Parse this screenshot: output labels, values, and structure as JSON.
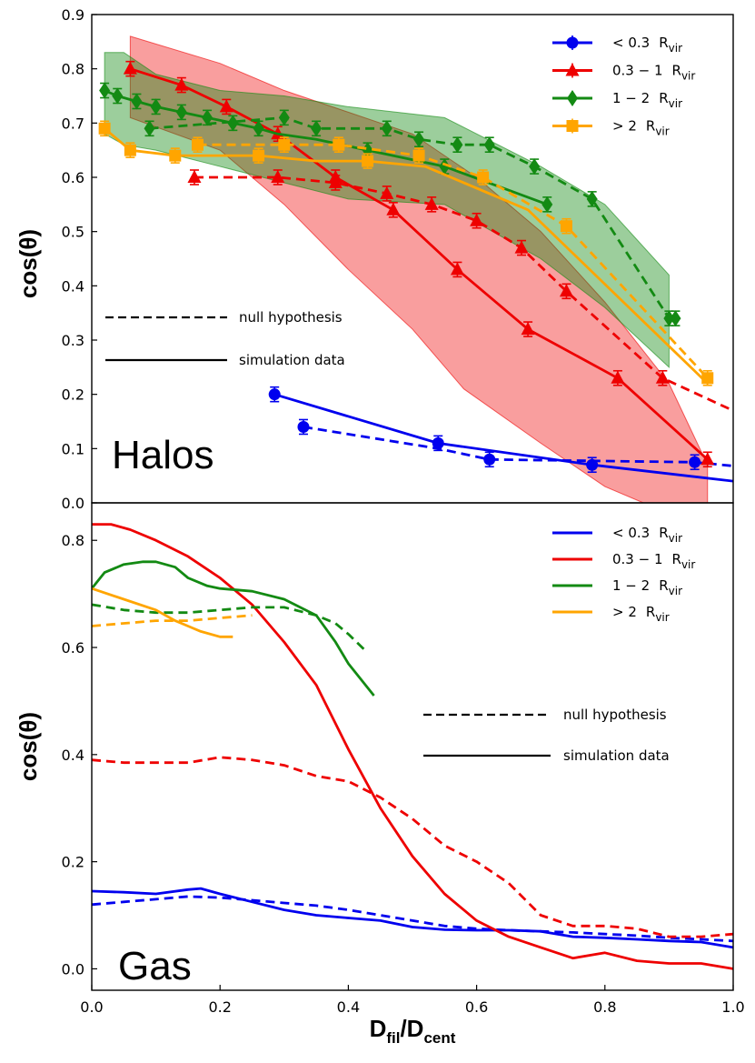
{
  "figure": {
    "xlabel_main": "D",
    "xlabel_sub1": "fil",
    "xlabel_mid": "/D",
    "xlabel_sub2": "cent"
  },
  "chart_data": [
    {
      "type": "line",
      "panel_label": "Halos",
      "ylabel": "cos(θ)",
      "xlim": [
        0.0,
        1.0
      ],
      "ylim": [
        0.0,
        0.9
      ],
      "yticks": [
        "0.0",
        "0.1",
        "0.2",
        "0.3",
        "0.4",
        "0.5",
        "0.6",
        "0.7",
        "0.8",
        "0.9"
      ],
      "linestyle_key": {
        "dashed": "null hypothesis",
        "solid": "simulation data"
      },
      "legend_position": "top-right",
      "series": [
        {
          "name": "< 0.3",
          "unit": "R",
          "unit_sub": "vir",
          "color": "#0000ee",
          "marker": "circle",
          "style": "solid",
          "x": [
            0.285,
            0.54,
            0.78,
            1.0
          ],
          "y": [
            0.2,
            0.11,
            0.07,
            0.04
          ],
          "markers": [
            0,
            1,
            2
          ]
        },
        {
          "name": "< 0.3",
          "color": "#0000ee",
          "marker": "circle",
          "style": "dashed",
          "x": [
            0.33,
            0.54,
            0.62,
            0.94,
            1.0
          ],
          "y": [
            0.14,
            0.1,
            0.08,
            0.075,
            0.068
          ],
          "markers": [
            0,
            2,
            3
          ]
        },
        {
          "name": "0.3 − 1",
          "unit": "R",
          "unit_sub": "vir",
          "color": "#ee0000",
          "marker": "triangle",
          "style": "solid",
          "x": [
            0.06,
            0.14,
            0.21,
            0.29,
            0.38,
            0.47,
            0.57,
            0.68,
            0.82,
            0.96
          ],
          "y": [
            0.8,
            0.77,
            0.73,
            0.68,
            0.6,
            0.54,
            0.43,
            0.32,
            0.23,
            0.08
          ],
          "markers": [
            0,
            1,
            2,
            3,
            4,
            5,
            6,
            7,
            8,
            9
          ]
        },
        {
          "name": "0.3 − 1",
          "color": "#ee0000",
          "marker": "triangle",
          "style": "dashed",
          "x": [
            0.16,
            0.29,
            0.38,
            0.46,
            0.53,
            0.6,
            0.67,
            0.74,
            0.89,
            1.0
          ],
          "y": [
            0.6,
            0.6,
            0.59,
            0.57,
            0.55,
            0.52,
            0.47,
            0.39,
            0.23,
            0.17
          ],
          "markers": [
            0,
            1,
            2,
            3,
            4,
            5,
            6,
            7,
            8
          ]
        },
        {
          "name": "1 − 2",
          "unit": "R",
          "unit_sub": "vir",
          "color": "#138a13",
          "marker": "diamond",
          "style": "solid",
          "x": [
            0.02,
            0.04,
            0.07,
            0.1,
            0.14,
            0.18,
            0.22,
            0.26,
            0.29,
            0.35,
            0.43,
            0.55,
            0.71
          ],
          "y": [
            0.76,
            0.75,
            0.74,
            0.73,
            0.72,
            0.71,
            0.7,
            0.69,
            0.68,
            0.67,
            0.65,
            0.62,
            0.55
          ],
          "markers": [
            0,
            1,
            2,
            3,
            4,
            5,
            6,
            7,
            10,
            11,
            12
          ]
        },
        {
          "name": "1 − 2",
          "color": "#138a13",
          "marker": "diamond",
          "style": "dashed",
          "x": [
            0.09,
            0.3,
            0.35,
            0.46,
            0.51,
            0.57,
            0.62,
            0.69,
            0.78,
            0.9,
            0.91
          ],
          "y": [
            0.69,
            0.71,
            0.69,
            0.69,
            0.67,
            0.66,
            0.66,
            0.62,
            0.56,
            0.34,
            0.34
          ],
          "markers": [
            0,
            1,
            2,
            3,
            4,
            5,
            6,
            7,
            8,
            9,
            10
          ]
        },
        {
          "name": "> 2",
          "unit": "R",
          "unit_sub": "vir",
          "color": "#ffa500",
          "marker": "square",
          "style": "solid",
          "x": [
            0.02,
            0.06,
            0.13,
            0.26,
            0.35,
            0.43,
            0.52,
            0.68,
            0.96
          ],
          "y": [
            0.69,
            0.65,
            0.64,
            0.64,
            0.63,
            0.63,
            0.62,
            0.54,
            0.22
          ],
          "markers": [
            0,
            1,
            2,
            3,
            5
          ]
        },
        {
          "name": "> 2",
          "color": "#ffa500",
          "marker": "square",
          "style": "dashed",
          "x": [
            0.165,
            0.3,
            0.385,
            0.51,
            0.61,
            0.74,
            0.96
          ],
          "y": [
            0.66,
            0.66,
            0.66,
            0.64,
            0.6,
            0.51,
            0.23
          ],
          "markers": [
            0,
            1,
            2,
            3,
            4,
            5,
            6
          ]
        }
      ],
      "bands": [
        {
          "color": "#ee0000",
          "upper": [
            [
              0.06,
              0.86
            ],
            [
              0.2,
              0.81
            ],
            [
              0.3,
              0.76
            ],
            [
              0.4,
              0.72
            ],
            [
              0.5,
              0.68
            ],
            [
              0.6,
              0.6
            ],
            [
              0.7,
              0.5
            ],
            [
              0.8,
              0.37
            ],
            [
              0.9,
              0.22
            ],
            [
              0.96,
              0.07
            ]
          ],
          "lower": [
            [
              0.06,
              0.71
            ],
            [
              0.2,
              0.65
            ],
            [
              0.3,
              0.55
            ],
            [
              0.4,
              0.43
            ],
            [
              0.5,
              0.32
            ],
            [
              0.58,
              0.21
            ],
            [
              0.7,
              0.11
            ],
            [
              0.8,
              0.03
            ],
            [
              0.86,
              0.0
            ],
            [
              0.96,
              0.0
            ]
          ]
        },
        {
          "color": "#138a13",
          "upper": [
            [
              0.02,
              0.83
            ],
            [
              0.05,
              0.83
            ],
            [
              0.1,
              0.79
            ],
            [
              0.2,
              0.76
            ],
            [
              0.3,
              0.75
            ],
            [
              0.4,
              0.73
            ],
            [
              0.55,
              0.71
            ],
            [
              0.7,
              0.62
            ],
            [
              0.8,
              0.55
            ],
            [
              0.9,
              0.42
            ]
          ],
          "lower": [
            [
              0.02,
              0.68
            ],
            [
              0.05,
              0.66
            ],
            [
              0.1,
              0.65
            ],
            [
              0.2,
              0.62
            ],
            [
              0.3,
              0.59
            ],
            [
              0.4,
              0.56
            ],
            [
              0.55,
              0.55
            ],
            [
              0.7,
              0.45
            ],
            [
              0.8,
              0.36
            ],
            [
              0.9,
              0.25
            ]
          ]
        }
      ]
    },
    {
      "type": "line",
      "panel_label": "Gas",
      "ylabel": "cos(θ)",
      "xlim": [
        0.0,
        1.0
      ],
      "ylim": [
        -0.04,
        0.87
      ],
      "yticks": [
        "0.0",
        "0.2",
        "0.4",
        "0.6",
        "0.8"
      ],
      "xticks": [
        "0.0",
        "0.2",
        "0.4",
        "0.6",
        "0.8",
        "1.0"
      ],
      "linestyle_key": {
        "dashed": "null hypothesis",
        "solid": "simulation data"
      },
      "legend_position": "top-right",
      "series": [
        {
          "name": "< 0.3",
          "unit": "R",
          "unit_sub": "vir",
          "color": "#0000ee",
          "style": "solid",
          "x": [
            0.0,
            0.05,
            0.1,
            0.15,
            0.17,
            0.2,
            0.25,
            0.3,
            0.35,
            0.4,
            0.45,
            0.5,
            0.55,
            0.6,
            0.65,
            0.7,
            0.75,
            0.8,
            0.85,
            0.9,
            0.95,
            1.0
          ],
          "y": [
            0.145,
            0.143,
            0.14,
            0.148,
            0.15,
            0.14,
            0.125,
            0.11,
            0.1,
            0.095,
            0.09,
            0.078,
            0.073,
            0.072,
            0.072,
            0.07,
            0.06,
            0.058,
            0.055,
            0.052,
            0.05,
            0.04
          ]
        },
        {
          "name": "< 0.3",
          "color": "#0000ee",
          "style": "dashed",
          "x": [
            0.0,
            0.05,
            0.1,
            0.15,
            0.2,
            0.25,
            0.3,
            0.35,
            0.4,
            0.45,
            0.5,
            0.55,
            0.6,
            0.65,
            0.7,
            0.75,
            0.8,
            0.85,
            0.9,
            0.95,
            1.0
          ],
          "y": [
            0.12,
            0.125,
            0.13,
            0.135,
            0.133,
            0.128,
            0.123,
            0.118,
            0.11,
            0.1,
            0.09,
            0.08,
            0.075,
            0.072,
            0.07,
            0.068,
            0.065,
            0.062,
            0.058,
            0.055,
            0.052
          ]
        },
        {
          "name": "0.3 − 1",
          "unit": "R",
          "unit_sub": "vir",
          "color": "#ee0000",
          "style": "solid",
          "x": [
            0.0,
            0.03,
            0.06,
            0.1,
            0.15,
            0.2,
            0.25,
            0.3,
            0.35,
            0.4,
            0.45,
            0.5,
            0.55,
            0.6,
            0.65,
            0.7,
            0.75,
            0.8,
            0.85,
            0.9,
            0.95,
            1.0
          ],
          "y": [
            0.83,
            0.83,
            0.82,
            0.8,
            0.77,
            0.73,
            0.68,
            0.61,
            0.53,
            0.41,
            0.3,
            0.21,
            0.14,
            0.09,
            0.06,
            0.04,
            0.02,
            0.03,
            0.015,
            0.01,
            0.01,
            0.0
          ]
        },
        {
          "name": "0.3 − 1",
          "color": "#ee0000",
          "style": "dashed",
          "x": [
            0.0,
            0.05,
            0.1,
            0.15,
            0.2,
            0.25,
            0.3,
            0.35,
            0.4,
            0.45,
            0.5,
            0.55,
            0.6,
            0.65,
            0.7,
            0.75,
            0.8,
            0.85,
            0.9,
            0.95,
            1.0
          ],
          "y": [
            0.39,
            0.385,
            0.385,
            0.385,
            0.395,
            0.39,
            0.38,
            0.36,
            0.35,
            0.32,
            0.28,
            0.23,
            0.2,
            0.16,
            0.1,
            0.08,
            0.08,
            0.075,
            0.06,
            0.06,
            0.065
          ]
        },
        {
          "name": "1 − 2",
          "unit": "R",
          "unit_sub": "vir",
          "color": "#138a13",
          "style": "solid",
          "x": [
            0.0,
            0.02,
            0.05,
            0.08,
            0.1,
            0.13,
            0.15,
            0.18,
            0.2,
            0.25,
            0.3,
            0.35,
            0.38,
            0.4,
            0.44
          ],
          "y": [
            0.71,
            0.74,
            0.755,
            0.76,
            0.76,
            0.75,
            0.73,
            0.715,
            0.71,
            0.705,
            0.69,
            0.66,
            0.61,
            0.57,
            0.51
          ]
        },
        {
          "name": "1 − 2",
          "color": "#138a13",
          "style": "dashed",
          "x": [
            0.0,
            0.05,
            0.1,
            0.15,
            0.2,
            0.25,
            0.3,
            0.35,
            0.38,
            0.4,
            0.43
          ],
          "y": [
            0.68,
            0.67,
            0.665,
            0.665,
            0.67,
            0.675,
            0.675,
            0.66,
            0.645,
            0.625,
            0.59
          ]
        },
        {
          "name": "> 2",
          "unit": "R",
          "unit_sub": "vir",
          "color": "#ffa500",
          "style": "solid",
          "x": [
            0.0,
            0.05,
            0.1,
            0.13,
            0.15,
            0.17,
            0.2,
            0.22
          ],
          "y": [
            0.71,
            0.69,
            0.67,
            0.65,
            0.64,
            0.63,
            0.62,
            0.62
          ]
        },
        {
          "name": "> 2",
          "color": "#ffa500",
          "style": "dashed",
          "x": [
            0.0,
            0.05,
            0.1,
            0.15,
            0.2,
            0.25
          ],
          "y": [
            0.64,
            0.645,
            0.65,
            0.65,
            0.655,
            0.66
          ]
        }
      ]
    }
  ]
}
